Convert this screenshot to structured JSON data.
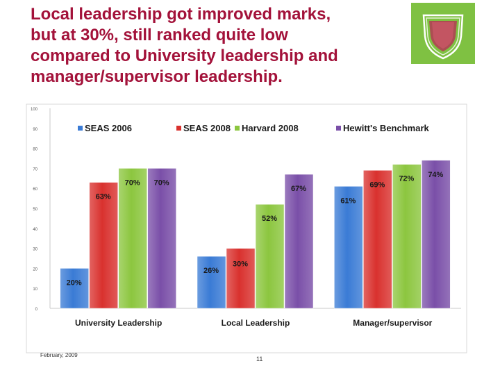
{
  "slide": {
    "title_lines": [
      "Local leadership got improved marks,",
      "but at 30%, still ranked quite low",
      "compared to University leadership and",
      "manager/supervisor leadership."
    ],
    "footer_date": "February, 2009",
    "page_number": "11"
  },
  "colors": {
    "title": "#a3123a",
    "logo_bg": "#7fc142",
    "logo_shield": "#b33a55"
  },
  "icons": {
    "logo": "shield-logo-icon"
  },
  "chart_data": {
    "type": "bar",
    "categories": [
      "University Leadership",
      "Local Leadership",
      "Manager/supervisor"
    ],
    "series": [
      {
        "name": "SEAS 2006",
        "values": [
          20,
          26,
          61
        ],
        "labels": [
          "20%",
          "26%",
          "61%"
        ],
        "color": "#3a7bd5"
      },
      {
        "name": "SEAS 2008",
        "values": [
          63,
          30,
          69
        ],
        "labels": [
          "63%",
          "30%",
          "69%"
        ],
        "color": "#d9312e"
      },
      {
        "name": "Harvard 2008",
        "values": [
          70,
          52,
          72
        ],
        "labels": [
          "70%",
          "52%",
          "72%"
        ],
        "color": "#8cc63f"
      },
      {
        "name": "Hewitt's Benchmark",
        "values": [
          70,
          67,
          74
        ],
        "labels": [
          "70%",
          "67%",
          "74%"
        ],
        "color": "#7a4fa8"
      }
    ],
    "yticks": [
      "0",
      "10",
      "20",
      "30",
      "40",
      "50",
      "60",
      "70",
      "80",
      "90",
      "100"
    ],
    "ylim": [
      0,
      100
    ],
    "legend": "top",
    "grid": false
  }
}
